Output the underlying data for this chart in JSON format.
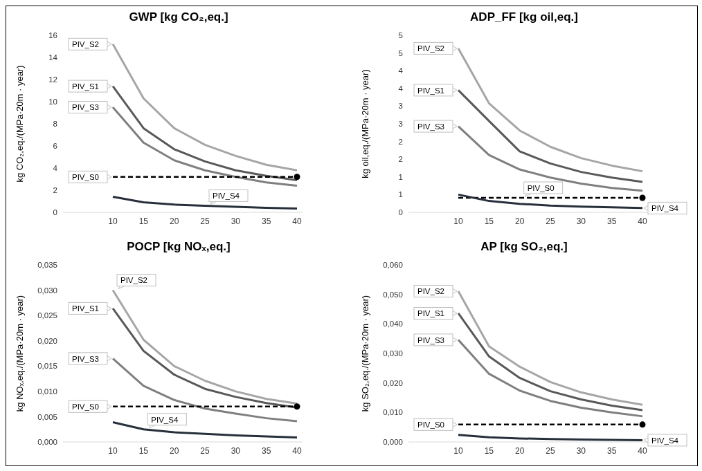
{
  "chart_data": [
    {
      "type": "line",
      "title": "GWP [kg CO₂,eq.]",
      "ylabel": "kg CO₂,eq./(MPa·20m · year)",
      "categories": [
        "10",
        "15",
        "20",
        "25",
        "30",
        "35",
        "40"
      ],
      "ylim": [
        0,
        16
      ],
      "yticks": [
        0,
        2,
        4,
        6,
        8,
        10,
        12,
        14,
        16
      ],
      "grid": false,
      "legend": false,
      "series": [
        {
          "name": "PIV_S2",
          "color": "#a6a6a6",
          "values": [
            15.2,
            10.3,
            7.6,
            6.1,
            5.1,
            4.3,
            3.8
          ]
        },
        {
          "name": "PIV_S1",
          "color": "#595959",
          "values": [
            11.4,
            7.6,
            5.7,
            4.6,
            3.8,
            3.3,
            2.9
          ]
        },
        {
          "name": "PIV_S3",
          "color": "#7f7f7f",
          "values": [
            9.5,
            6.3,
            4.7,
            3.8,
            3.2,
            2.7,
            2.4
          ]
        },
        {
          "name": "PIV_S0",
          "color": "#000000",
          "line_style": "dashed",
          "values": [
            3.2,
            3.2,
            3.2,
            3.2,
            3.2,
            3.2,
            3.2
          ]
        },
        {
          "name": "PIV_S4",
          "color": "#262f3a",
          "values": [
            1.4,
            0.9,
            0.7,
            0.6,
            0.5,
            0.4,
            0.35
          ]
        }
      ]
    },
    {
      "type": "line",
      "title": "ADP_FF [kg oil,eq.]",
      "ylabel": "kg oil,eq./(MPa·20m · year)",
      "categories": [
        "10",
        "15",
        "20",
        "25",
        "30",
        "35",
        "40"
      ],
      "ylim": [
        0,
        5
      ],
      "yticks": [
        0,
        {
          "value": 0.5,
          "label": "1"
        },
        1,
        {
          "value": 1.5,
          "label": "2"
        },
        2,
        {
          "value": 2.5,
          "label": "3"
        },
        3,
        {
          "value": 3.5,
          "label": "4"
        },
        4,
        {
          "value": 4.5,
          "label": "5"
        },
        5
      ],
      "grid": false,
      "legend": false,
      "series": [
        {
          "name": "PIV_S2",
          "color": "#a6a6a6",
          "values": [
            4.63,
            3.08,
            2.31,
            1.85,
            1.53,
            1.32,
            1.16
          ]
        },
        {
          "name": "PIV_S1",
          "color": "#595959",
          "values": [
            3.45,
            2.58,
            1.72,
            1.38,
            1.14,
            0.98,
            0.86
          ]
        },
        {
          "name": "PIV_S3",
          "color": "#7f7f7f",
          "values": [
            2.43,
            1.62,
            1.21,
            0.98,
            0.81,
            0.69,
            0.61
          ]
        },
        {
          "name": "PIV_S0",
          "color": "#000000",
          "line_style": "dashed",
          "values": [
            0.41,
            0.41,
            0.41,
            0.41,
            0.41,
            0.41,
            0.41
          ]
        },
        {
          "name": "PIV_S4",
          "color": "#262f3a",
          "values": [
            0.5,
            0.32,
            0.24,
            0.19,
            0.16,
            0.14,
            0.12
          ]
        }
      ]
    },
    {
      "type": "line",
      "title": "POCP [kg NOₓ,eq.]",
      "ylabel": "kg NOₓ,eq./(MPa·20m · year)",
      "categories": [
        "10",
        "15",
        "20",
        "25",
        "30",
        "35",
        "40"
      ],
      "ylim": [
        0,
        0.035
      ],
      "yticks": [
        {
          "value": 0,
          "label": "0,000"
        },
        {
          "value": 0.005,
          "label": "0,005"
        },
        {
          "value": 0.01,
          "label": "0,010"
        },
        {
          "value": 0.015,
          "label": "0,015"
        },
        {
          "value": 0.02,
          "label": "0,020"
        },
        {
          "value": 0.025,
          "label": "0,025"
        },
        {
          "value": 0.03,
          "label": "0,030"
        },
        {
          "value": 0.035,
          "label": "0,035"
        }
      ],
      "grid": false,
      "legend": false,
      "series": [
        {
          "name": "PIV_S2",
          "color": "#a6a6a6",
          "values": [
            0.03,
            0.0202,
            0.015,
            0.0121,
            0.01,
            0.0085,
            0.0076
          ]
        },
        {
          "name": "PIV_S1",
          "color": "#595959",
          "values": [
            0.0264,
            0.018,
            0.0133,
            0.0105,
            0.0089,
            0.0077,
            0.0068
          ]
        },
        {
          "name": "PIV_S3",
          "color": "#7f7f7f",
          "values": [
            0.0165,
            0.0111,
            0.0083,
            0.0066,
            0.0056,
            0.0047,
            0.0041
          ]
        },
        {
          "name": "PIV_S0",
          "color": "#000000",
          "line_style": "dashed",
          "values": [
            0.007,
            0.007,
            0.007,
            0.007,
            0.007,
            0.007,
            0.007
          ]
        },
        {
          "name": "PIV_S4",
          "color": "#262f3a",
          "values": [
            0.0039,
            0.0025,
            0.0019,
            0.0016,
            0.0013,
            0.0011,
            0.0009
          ]
        }
      ]
    },
    {
      "type": "line",
      "title": "AP [kg SO₂,eq.]",
      "ylabel": "kg SO₂,eq./(MPa·20m · year)",
      "categories": [
        "10",
        "15",
        "20",
        "25",
        "30",
        "35",
        "40"
      ],
      "ylim": [
        0,
        0.06
      ],
      "yticks": [
        {
          "value": 0,
          "label": "0,000"
        },
        {
          "value": 0.01,
          "label": "0,010"
        },
        {
          "value": 0.02,
          "label": "0,020"
        },
        {
          "value": 0.03,
          "label": "0,030"
        },
        {
          "value": 0.04,
          "label": "0,040"
        },
        {
          "value": 0.05,
          "label": "0,050"
        },
        {
          "value": 0.06,
          "label": "0,060"
        }
      ],
      "grid": false,
      "legend": false,
      "series": [
        {
          "name": "PIV_S2",
          "color": "#a6a6a6",
          "values": [
            0.0511,
            0.0324,
            0.0255,
            0.0203,
            0.0168,
            0.0144,
            0.0126
          ]
        },
        {
          "name": "PIV_S1",
          "color": "#595959",
          "values": [
            0.0436,
            0.029,
            0.0217,
            0.0172,
            0.0144,
            0.0123,
            0.0108
          ]
        },
        {
          "name": "PIV_S3",
          "color": "#7f7f7f",
          "values": [
            0.0346,
            0.0231,
            0.0174,
            0.0139,
            0.0116,
            0.01,
            0.0087
          ]
        },
        {
          "name": "PIV_S0",
          "color": "#000000",
          "line_style": "dashed",
          "values": [
            0.0059,
            0.0059,
            0.0059,
            0.0059,
            0.0059,
            0.0059,
            0.0059
          ]
        },
        {
          "name": "PIV_S4",
          "color": "#262f3a",
          "values": [
            0.0024,
            0.0016,
            0.0012,
            0.001,
            0.0008,
            0.0007,
            0.0006
          ]
        }
      ]
    }
  ]
}
